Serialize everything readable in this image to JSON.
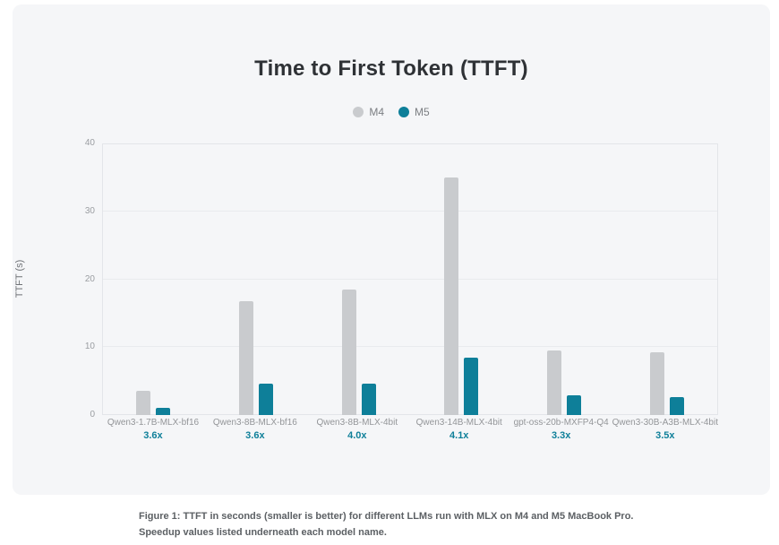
{
  "caption": {
    "text": "Figure 1: TTFT in seconds (smaller is better) for different LLMs run with MLX on M4 and M5 MacBook Pro. Speedup values listed underneath each model name."
  },
  "colors": {
    "m4_bar": "#c9cbce",
    "m5_bar": "#0e7f99",
    "card_bg": "#f5f6f8",
    "speedup_text": "#0e7f99"
  },
  "chart_data": {
    "type": "bar",
    "title": "Time to First Token (TTFT)",
    "ylabel": "TTFT (s)",
    "xlabel": "",
    "ylim": [
      0,
      40
    ],
    "yticks": [
      0,
      10,
      20,
      30,
      40
    ],
    "grid": true,
    "legend_position": "top",
    "categories": [
      "Qwen3-1.7B-MLX-bf16",
      "Qwen3-8B-MLX-bf16",
      "Qwen3-8B-MLX-4bit",
      "Qwen3-14B-MLX-4bit",
      "gpt-oss-20b-MXFP4-Q4",
      "Qwen3-30B-A3B-MLX-4bit"
    ],
    "speedups": [
      "3.6x",
      "3.6x",
      "4.0x",
      "4.1x",
      "3.3x",
      "3.5x"
    ],
    "series": [
      {
        "name": "M4",
        "color": "#c9cbce",
        "values": [
          3.6,
          16.8,
          18.5,
          35.0,
          9.5,
          9.3
        ]
      },
      {
        "name": "M5",
        "color": "#0e7f99",
        "values": [
          1.0,
          4.6,
          4.6,
          8.5,
          2.9,
          2.6
        ]
      }
    ]
  }
}
